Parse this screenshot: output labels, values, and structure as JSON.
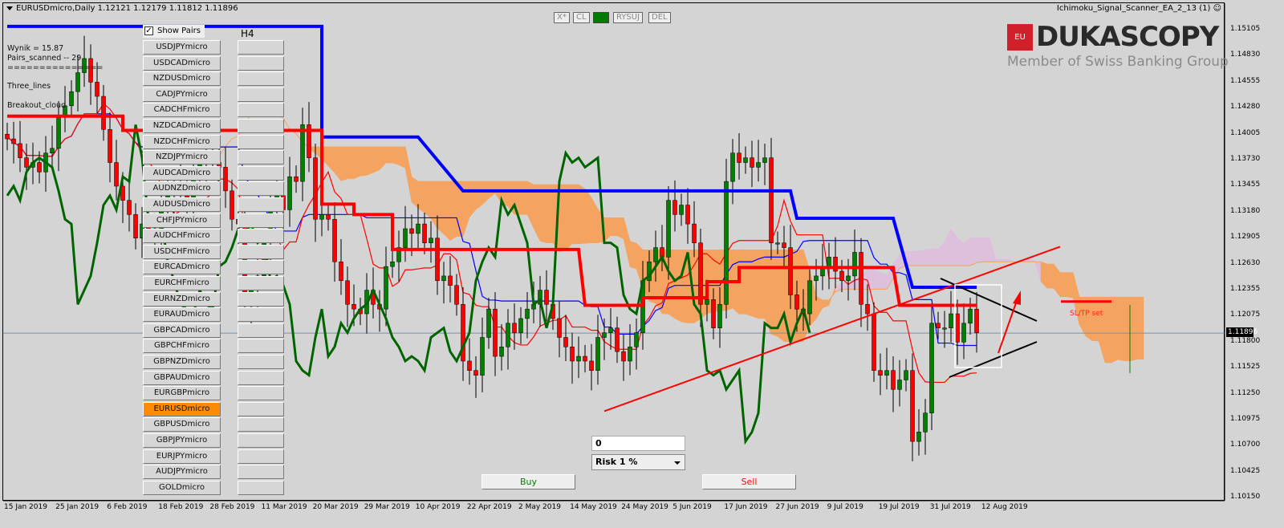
{
  "header": {
    "symbol_title": "EURUSDmicro,Daily  1.12121 1.12179 1.11812 1.11896",
    "ea_name": "Ichimoku_Signal_Scanner_EA_2_13 (1)",
    "ea_status_icon": "smiley-icon"
  },
  "toolbar": {
    "buttons": [
      "X*",
      "CL",
      "",
      "RYSUJ",
      "DEL"
    ],
    "indicator_color": "#007a00"
  },
  "info": {
    "wynik": "Wynik = 15.87",
    "pairs_scanned": "Pairs_scanned -- 29",
    "separator": "===============",
    "strategy1": "Three_lines",
    "strategy2": "Breakout_cloud"
  },
  "pairs_panel": {
    "show_pairs_label": "Show Pairs",
    "show_pairs_checked": true,
    "timeframe_label": "H4",
    "active_pair": "EURUSDmicro",
    "pairs": [
      "USDJPYmicro",
      "USDCADmicro",
      "NZDUSDmicro",
      "CADJPYmicro",
      "CADCHFmicro",
      "NZDCADmicro",
      "NZDCHFmicro",
      "NZDJPYmicro",
      "AUDCADmicro",
      "AUDNZDmicro",
      "AUDUSDmicro",
      "CHFJPYmicro",
      "AUDCHFmicro",
      "USDCHFmicro",
      "EURCADmicro",
      "EURCHFmicro",
      "EURNZDmicro",
      "EURAUDmicro",
      "GBPCADmicro",
      "GBPCHFmicro",
      "GBPNZDmicro",
      "GBPAUDmicro",
      "EURGBPmicro",
      "EURUSDmicro",
      "GBPUSDmicro",
      "GBPJPYmicro",
      "EURJPYmicro",
      "AUDJPYmicro",
      "GOLDmicro"
    ]
  },
  "logo": {
    "badge": "EU",
    "brand": "DUKASCOPY",
    "tagline": "Member of Swiss Banking Group"
  },
  "trade_panel": {
    "lot_value": "0",
    "risk_selected": "Risk  1 %",
    "buy_label": "Buy",
    "sell_label": "Sell",
    "buy_color": "#008000",
    "sell_color": "#ff0000"
  },
  "annotation": {
    "sltp_label": "SL/TP set"
  },
  "chart_data": {
    "type": "candlestick",
    "symbol": "EURUSDmicro",
    "timeframe": "Daily",
    "current_price": "1.11896",
    "y_ticks": [
      "1.15105",
      "1.14830",
      "1.14555",
      "1.14280",
      "1.14005",
      "1.13730",
      "1.13455",
      "1.13180",
      "1.12905",
      "1.12630",
      "1.12355",
      "1.12075",
      "1.11800",
      "1.11525",
      "1.11250",
      "1.10975",
      "1.10700",
      "1.10425",
      "1.10150"
    ],
    "x_ticks": [
      "15 Jan 2019",
      "25 Jan 2019",
      "6 Feb 2019",
      "18 Feb 2019",
      "28 Feb 2019",
      "11 Mar 2019",
      "20 Mar 2019",
      "29 Mar 2019",
      "10 Apr 2019",
      "22 Apr 2019",
      "2 May 2019",
      "14 May 2019",
      "24 May 2019",
      "5 Jun 2019",
      "17 Jun 2019",
      "27 Jun 2019",
      "9 Jul 2019",
      "19 Jul 2019",
      "31 Jul 2019",
      "12 Aug 2019"
    ],
    "ylim": [
      1.1003,
      1.1525
    ],
    "colors": {
      "bull": "#008000",
      "bear": "#ff0000",
      "cloud_bull": "#dcc0dc",
      "cloud_bear": "#f4a460",
      "tenkan": "#ff0000",
      "kijun": "#0000ff",
      "chikou": "#006400"
    },
    "closes": [
      1.1395,
      1.139,
      1.1375,
      1.1365,
      1.137,
      1.136,
      1.138,
      1.1385,
      1.142,
      1.143,
      1.1445,
      1.1465,
      1.148,
      1.1455,
      1.144,
      1.1405,
      1.137,
      1.1345,
      1.133,
      1.1315,
      1.129,
      1.1305,
      1.13,
      1.1295,
      1.132,
      1.134,
      1.1335,
      1.1345,
      1.133,
      1.136,
      1.137,
      1.1375,
      1.137,
      1.1365,
      1.134,
      1.131,
      1.1305,
      1.122,
      1.1235,
      1.125,
      1.1285,
      1.1325,
      1.1335,
      1.132,
      1.1355,
      1.135,
      1.141,
      1.1375,
      1.131,
      1.1315,
      1.131,
      1.1265,
      1.1245,
      1.122,
      1.1215,
      1.121,
      1.1235,
      1.122,
      1.1215,
      1.126,
      1.1265,
      1.128,
      1.13,
      1.1295,
      1.1305,
      1.1285,
      1.129,
      1.1245,
      1.125,
      1.124,
      1.122,
      1.116,
      1.115,
      1.1145,
      1.1185,
      1.1215,
      1.1165,
      1.1175,
      1.12,
      1.119,
      1.1205,
      1.1215,
      1.122,
      1.1235,
      1.122,
      1.1205,
      1.1185,
      1.1175,
      1.116,
      1.1165,
      1.116,
      1.115,
      1.1185,
      1.119,
      1.1195,
      1.117,
      1.116,
      1.1175,
      1.119,
      1.1245,
      1.1265,
      1.128,
      1.127,
      1.133,
      1.1315,
      1.1325,
      1.1305,
      1.1285,
      1.122,
      1.1225,
      1.1195,
      1.122,
      1.135,
      1.138,
      1.137,
      1.1375,
      1.1365,
      1.137,
      1.1375,
      1.1285,
      1.1285,
      1.128,
      1.123,
      1.1215,
      1.121,
      1.1245,
      1.125,
      1.126,
      1.127,
      1.1255,
      1.1245,
      1.125,
      1.1275,
      1.122,
      1.121,
      1.115,
      1.1145,
      1.115,
      1.113,
      1.114,
      1.115,
      1.1075,
      1.1085,
      1.1105,
      1.12,
      1.1195,
      1.1195,
      1.121,
      1.118,
      1.12,
      1.1215,
      1.119
    ],
    "htf_kijun_steps": [
      [
        0,
        1.1514
      ],
      [
        49,
        1.1514
      ],
      [
        49,
        1.1397
      ],
      [
        64,
        1.1397
      ],
      [
        71,
        1.134
      ],
      [
        122,
        1.134
      ],
      [
        123,
        1.1311
      ],
      [
        138,
        1.1311
      ],
      [
        141,
        1.1238
      ],
      [
        151,
        1.1238
      ]
    ],
    "htf_tenkan_steps": [
      [
        0,
        1.1419
      ],
      [
        18,
        1.1419
      ],
      [
        18,
        1.1404
      ],
      [
        49,
        1.1404
      ],
      [
        49,
        1.1326
      ],
      [
        54,
        1.1326
      ],
      [
        54,
        1.1315
      ],
      [
        60,
        1.1315
      ],
      [
        60,
        1.1278
      ],
      [
        89,
        1.1278
      ],
      [
        90,
        1.1219
      ],
      [
        99,
        1.1219
      ],
      [
        99,
        1.1227
      ],
      [
        109,
        1.1227
      ],
      [
        109,
        1.1244
      ],
      [
        114,
        1.1244
      ],
      [
        114,
        1.1259
      ],
      [
        138,
        1.1259
      ],
      [
        139,
        1.1219
      ],
      [
        151,
        1.1219
      ]
    ],
    "sltp_level": 1.1223,
    "trendline": [
      [
        93,
        1.1107
      ],
      [
        164,
        1.1281
      ]
    ]
  }
}
